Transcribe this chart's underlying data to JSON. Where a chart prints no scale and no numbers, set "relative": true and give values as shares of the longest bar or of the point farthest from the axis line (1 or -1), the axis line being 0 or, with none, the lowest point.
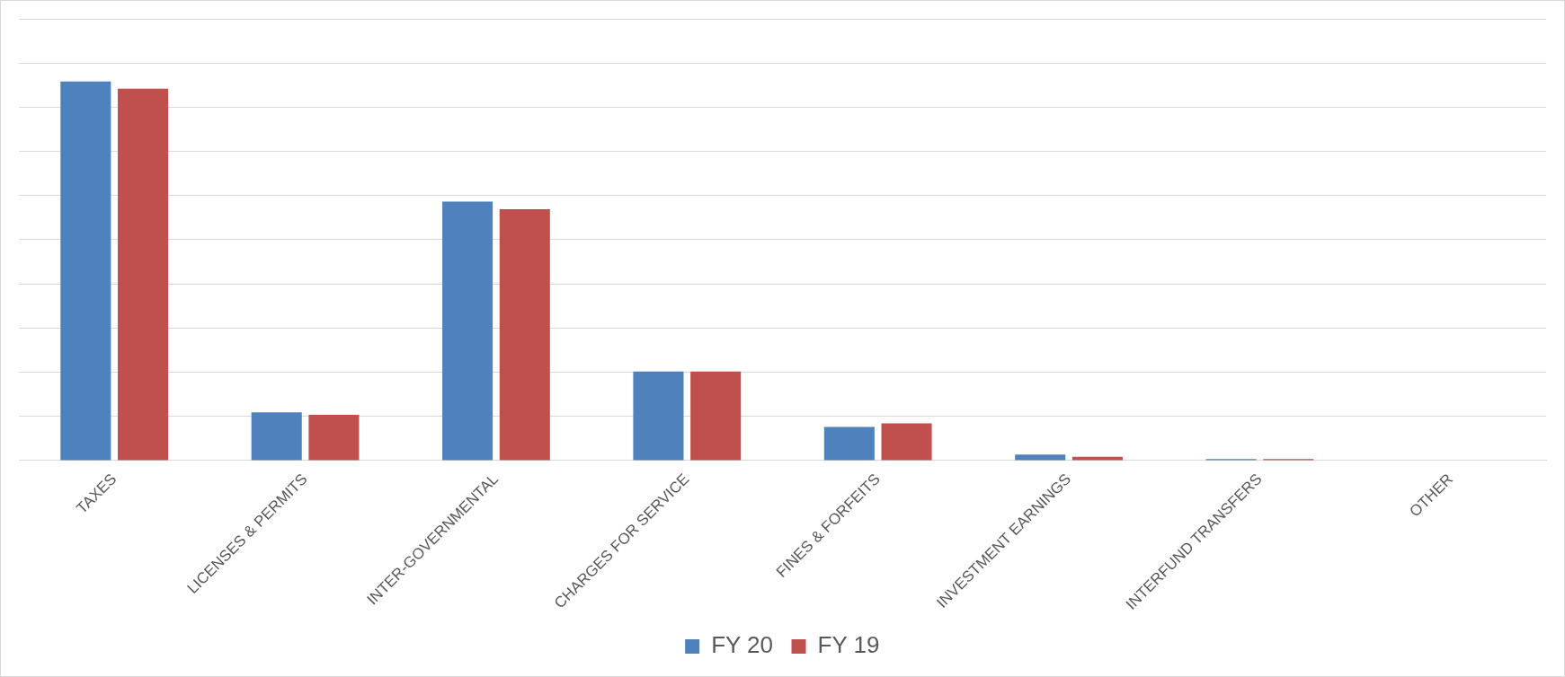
{
  "chart_data": {
    "type": "bar",
    "relative": true,
    "grid": "y",
    "legend": "bottom",
    "categories": [
      "TAXES",
      "LICENSES & PERMITS",
      "INTER-GOVERNMENTAL",
      "CHARGES FOR SERVICE",
      "FINES & FORFEITS",
      "INVESTMENT EARNINGS",
      "INTERFUND TRANSFERS",
      "OTHER"
    ],
    "series": [
      {
        "name": "FY 20",
        "color": "#4f81bd",
        "values": [
          1,
          0.127,
          0.683,
          0.235,
          0.089,
          0.016,
          0.004,
          0
        ]
      },
      {
        "name": "FY 19",
        "color": "#c0504d",
        "values": [
          0.981,
          0.121,
          0.663,
          0.235,
          0.098,
          0.01,
          0.004,
          0
        ]
      }
    ]
  }
}
